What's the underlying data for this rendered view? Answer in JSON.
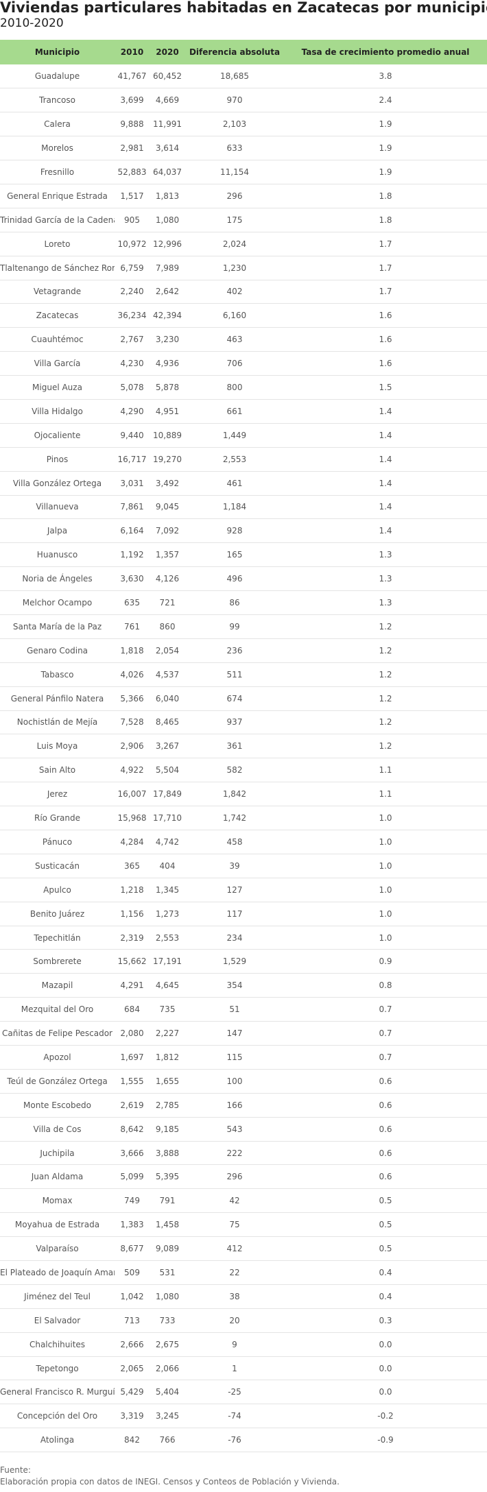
{
  "title": "Viviendas particulares habitadas en Zacatecas por municipio",
  "subtitle": "2010-2020",
  "colors": {
    "header_bg": "#a6da8e",
    "row_border": "#e4e4e4"
  },
  "chart_data": {
    "type": "table",
    "columns": [
      "Municipio",
      "2010",
      "2020",
      "Diferencia absoluta",
      "Tasa de crecimiento promedio anual"
    ],
    "rows": [
      [
        "Guadalupe",
        "41,767",
        "60,452",
        "18,685",
        "3.8"
      ],
      [
        "Trancoso",
        "3,699",
        "4,669",
        "970",
        "2.4"
      ],
      [
        "Calera",
        "9,888",
        "11,991",
        "2,103",
        "1.9"
      ],
      [
        "Morelos",
        "2,981",
        "3,614",
        "633",
        "1.9"
      ],
      [
        "Fresnillo",
        "52,883",
        "64,037",
        "11,154",
        "1.9"
      ],
      [
        "General Enrique Estrada",
        "1,517",
        "1,813",
        "296",
        "1.8"
      ],
      [
        "Trinidad García de la Cadena",
        "905",
        "1,080",
        "175",
        "1.8"
      ],
      [
        "Loreto",
        "10,972",
        "12,996",
        "2,024",
        "1.7"
      ],
      [
        "Tlaltenango de Sánchez Román",
        "6,759",
        "7,989",
        "1,230",
        "1.7"
      ],
      [
        "Vetagrande",
        "2,240",
        "2,642",
        "402",
        "1.7"
      ],
      [
        "Zacatecas",
        "36,234",
        "42,394",
        "6,160",
        "1.6"
      ],
      [
        "Cuauhtémoc",
        "2,767",
        "3,230",
        "463",
        "1.6"
      ],
      [
        "Villa García",
        "4,230",
        "4,936",
        "706",
        "1.6"
      ],
      [
        "Miguel Auza",
        "5,078",
        "5,878",
        "800",
        "1.5"
      ],
      [
        "Villa Hidalgo",
        "4,290",
        "4,951",
        "661",
        "1.4"
      ],
      [
        "Ojocaliente",
        "9,440",
        "10,889",
        "1,449",
        "1.4"
      ],
      [
        "Pinos",
        "16,717",
        "19,270",
        "2,553",
        "1.4"
      ],
      [
        "Villa González Ortega",
        "3,031",
        "3,492",
        "461",
        "1.4"
      ],
      [
        "Villanueva",
        "7,861",
        "9,045",
        "1,184",
        "1.4"
      ],
      [
        "Jalpa",
        "6,164",
        "7,092",
        "928",
        "1.4"
      ],
      [
        "Huanusco",
        "1,192",
        "1,357",
        "165",
        "1.3"
      ],
      [
        "Noria de Ángeles",
        "3,630",
        "4,126",
        "496",
        "1.3"
      ],
      [
        "Melchor Ocampo",
        "635",
        "721",
        "86",
        "1.3"
      ],
      [
        "Santa María de la Paz",
        "761",
        "860",
        "99",
        "1.2"
      ],
      [
        "Genaro Codina",
        "1,818",
        "2,054",
        "236",
        "1.2"
      ],
      [
        "Tabasco",
        "4,026",
        "4,537",
        "511",
        "1.2"
      ],
      [
        "General Pánfilo Natera",
        "5,366",
        "6,040",
        "674",
        "1.2"
      ],
      [
        "Nochistlán de Mejía",
        "7,528",
        "8,465",
        "937",
        "1.2"
      ],
      [
        "Luis Moya",
        "2,906",
        "3,267",
        "361",
        "1.2"
      ],
      [
        "Sain Alto",
        "4,922",
        "5,504",
        "582",
        "1.1"
      ],
      [
        "Jerez",
        "16,007",
        "17,849",
        "1,842",
        "1.1"
      ],
      [
        "Río Grande",
        "15,968",
        "17,710",
        "1,742",
        "1.0"
      ],
      [
        "Pánuco",
        "4,284",
        "4,742",
        "458",
        "1.0"
      ],
      [
        "Susticacán",
        "365",
        "404",
        "39",
        "1.0"
      ],
      [
        "Apulco",
        "1,218",
        "1,345",
        "127",
        "1.0"
      ],
      [
        "Benito Juárez",
        "1,156",
        "1,273",
        "117",
        "1.0"
      ],
      [
        "Tepechitlán",
        "2,319",
        "2,553",
        "234",
        "1.0"
      ],
      [
        "Sombrerete",
        "15,662",
        "17,191",
        "1,529",
        "0.9"
      ],
      [
        "Mazapil",
        "4,291",
        "4,645",
        "354",
        "0.8"
      ],
      [
        "Mezquital del Oro",
        "684",
        "735",
        "51",
        "0.7"
      ],
      [
        "Cañitas de Felipe Pescador",
        "2,080",
        "2,227",
        "147",
        "0.7"
      ],
      [
        "Apozol",
        "1,697",
        "1,812",
        "115",
        "0.7"
      ],
      [
        "Teúl de González Ortega",
        "1,555",
        "1,655",
        "100",
        "0.6"
      ],
      [
        "Monte Escobedo",
        "2,619",
        "2,785",
        "166",
        "0.6"
      ],
      [
        "Villa de Cos",
        "8,642",
        "9,185",
        "543",
        "0.6"
      ],
      [
        "Juchipila",
        "3,666",
        "3,888",
        "222",
        "0.6"
      ],
      [
        "Juan Aldama",
        "5,099",
        "5,395",
        "296",
        "0.6"
      ],
      [
        "Momax",
        "749",
        "791",
        "42",
        "0.5"
      ],
      [
        "Moyahua de Estrada",
        "1,383",
        "1,458",
        "75",
        "0.5"
      ],
      [
        "Valparaíso",
        "8,677",
        "9,089",
        "412",
        "0.5"
      ],
      [
        "El Plateado de Joaquín Amaro",
        "509",
        "531",
        "22",
        "0.4"
      ],
      [
        "Jiménez del Teul",
        "1,042",
        "1,080",
        "38",
        "0.4"
      ],
      [
        "El Salvador",
        "713",
        "733",
        "20",
        "0.3"
      ],
      [
        "Chalchihuites",
        "2,666",
        "2,675",
        "9",
        "0.0"
      ],
      [
        "Tepetongo",
        "2,065",
        "2,066",
        "1",
        "0.0"
      ],
      [
        "General Francisco R. Murguía",
        "5,429",
        "5,404",
        "-25",
        "0.0"
      ],
      [
        "Concepción del Oro",
        "3,319",
        "3,245",
        "-74",
        "-0.2"
      ],
      [
        "Atolinga",
        "842",
        "766",
        "-76",
        "-0.9"
      ]
    ]
  },
  "footer": {
    "source_label": "Fuente:",
    "source_text": "Elaboración propia con datos de INEGI. Censos y Conteos de Población y Vivienda."
  }
}
